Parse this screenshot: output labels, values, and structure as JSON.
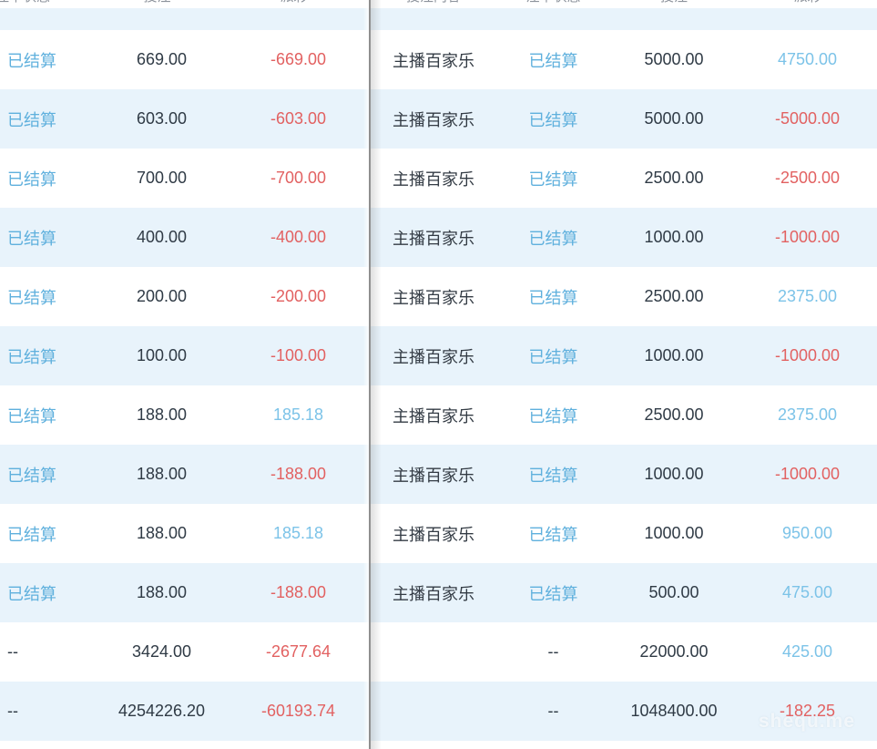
{
  "left_table": {
    "columns": [
      "注单状态",
      "投注",
      "派彩"
    ],
    "rows": [
      {
        "status": "已结算",
        "bet": "669.00",
        "payout": "-669.00",
        "payout_tone": "neg"
      },
      {
        "status": "已结算",
        "bet": "603.00",
        "payout": "-603.00",
        "payout_tone": "neg"
      },
      {
        "status": "已结算",
        "bet": "700.00",
        "payout": "-700.00",
        "payout_tone": "neg"
      },
      {
        "status": "已结算",
        "bet": "400.00",
        "payout": "-400.00",
        "payout_tone": "neg"
      },
      {
        "status": "已结算",
        "bet": "200.00",
        "payout": "-200.00",
        "payout_tone": "neg"
      },
      {
        "status": "已结算",
        "bet": "100.00",
        "payout": "-100.00",
        "payout_tone": "neg"
      },
      {
        "status": "已结算",
        "bet": "188.00",
        "payout": "185.18",
        "payout_tone": "pos"
      },
      {
        "status": "已结算",
        "bet": "188.00",
        "payout": "-188.00",
        "payout_tone": "neg"
      },
      {
        "status": "已结算",
        "bet": "188.00",
        "payout": "185.18",
        "payout_tone": "pos"
      },
      {
        "status": "已结算",
        "bet": "188.00",
        "payout": "-188.00",
        "payout_tone": "neg"
      },
      {
        "status": "--",
        "bet": "3424.00",
        "payout": "-2677.64",
        "payout_tone": "neg"
      },
      {
        "status": "--",
        "bet": "4254226.20",
        "payout": "-60193.74",
        "payout_tone": "neg"
      }
    ]
  },
  "right_table": {
    "columns": [
      "投注内容",
      "注单状态",
      "投注",
      "派彩"
    ],
    "rows": [
      {
        "content": "主播百家乐",
        "status": "已结算",
        "bet": "5000.00",
        "payout": "4750.00",
        "payout_tone": "pos"
      },
      {
        "content": "主播百家乐",
        "status": "已结算",
        "bet": "5000.00",
        "payout": "-5000.00",
        "payout_tone": "neg"
      },
      {
        "content": "主播百家乐",
        "status": "已结算",
        "bet": "2500.00",
        "payout": "-2500.00",
        "payout_tone": "neg"
      },
      {
        "content": "主播百家乐",
        "status": "已结算",
        "bet": "1000.00",
        "payout": "-1000.00",
        "payout_tone": "neg"
      },
      {
        "content": "主播百家乐",
        "status": "已结算",
        "bet": "2500.00",
        "payout": "2375.00",
        "payout_tone": "pos"
      },
      {
        "content": "主播百家乐",
        "status": "已结算",
        "bet": "1000.00",
        "payout": "-1000.00",
        "payout_tone": "neg"
      },
      {
        "content": "主播百家乐",
        "status": "已结算",
        "bet": "2500.00",
        "payout": "2375.00",
        "payout_tone": "pos"
      },
      {
        "content": "主播百家乐",
        "status": "已结算",
        "bet": "1000.00",
        "payout": "-1000.00",
        "payout_tone": "neg"
      },
      {
        "content": "主播百家乐",
        "status": "已结算",
        "bet": "1000.00",
        "payout": "950.00",
        "payout_tone": "pos"
      },
      {
        "content": "主播百家乐",
        "status": "已结算",
        "bet": "500.00",
        "payout": "475.00",
        "payout_tone": "pos"
      },
      {
        "content": "",
        "status": "--",
        "bet": "22000.00",
        "payout": "425.00",
        "payout_tone": "pos"
      },
      {
        "content": "",
        "status": "--",
        "bet": "1048400.00",
        "payout": "-182.25",
        "payout_tone": "neg"
      }
    ]
  },
  "settled_status_label": "已结算",
  "watermark": "shequ.me",
  "colors": {
    "status_blue": "#5fb0dd",
    "payout_positive": "#7cc3e8",
    "payout_negative": "#e26161",
    "text_dark": "#2f3a45",
    "header_gray": "#8d939c",
    "stripe_blue": "#e8f3fb",
    "divider_gray": "#8f8f8f"
  }
}
